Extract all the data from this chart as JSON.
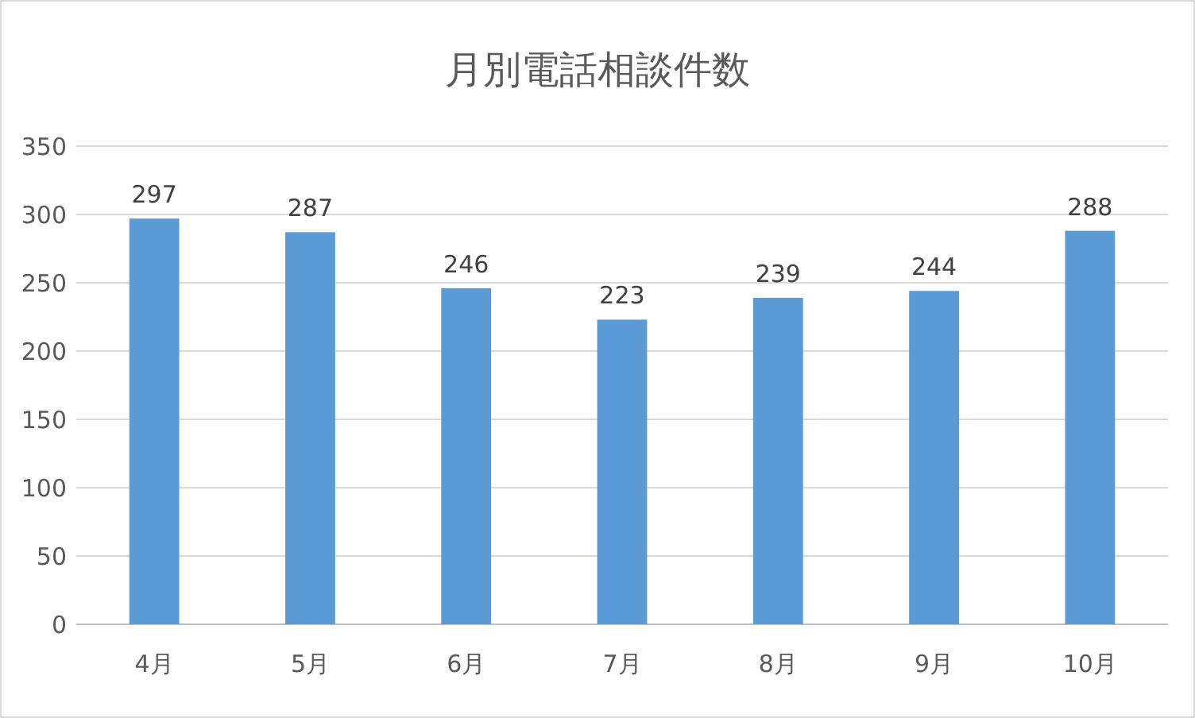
{
  "chart_data": {
    "type": "bar",
    "title": "月別電話相談件数",
    "categories": [
      "4月",
      "5月",
      "6月",
      "7月",
      "8月",
      "9月",
      "10月"
    ],
    "values": [
      297,
      287,
      246,
      223,
      239,
      244,
      288
    ],
    "color": "#5b9bd5",
    "ylim": [
      0,
      350
    ],
    "yticks": [
      0,
      50,
      100,
      150,
      200,
      250,
      300,
      350
    ],
    "grid": "y",
    "data_labels": true
  }
}
